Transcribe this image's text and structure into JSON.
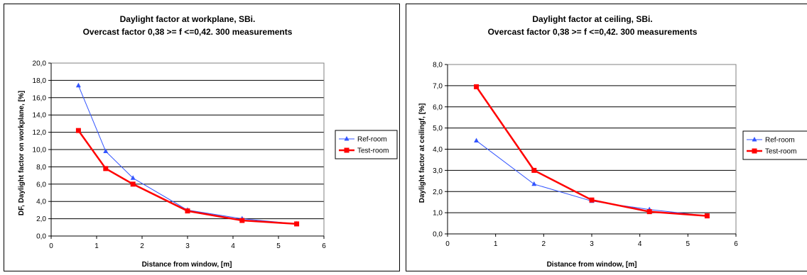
{
  "chart_data": [
    {
      "type": "line",
      "title": "Daylight factor at workplane, SBi.",
      "subtitle": "Overcast factor 0,38 >= f <=0,42. 300 measurements",
      "xlabel": "Distance from window, [m]",
      "ylabel": "DF, Daylight factor on workplane, [%]",
      "xlim": [
        0,
        6
      ],
      "ylim": [
        0,
        20
      ],
      "x_ticks": [
        "0",
        "1",
        "2",
        "3",
        "4",
        "5",
        "6"
      ],
      "y_ticks": [
        "0,0",
        "2,0",
        "4,0",
        "6,0",
        "8,0",
        "10,0",
        "12,0",
        "14,0",
        "16,0",
        "18,0",
        "20,0"
      ],
      "grid": "horizontal",
      "legend_position": "right",
      "series": [
        {
          "name": "Ref-room",
          "color": "#3355ff",
          "marker": "triangle",
          "x": [
            0.6,
            1.2,
            1.8,
            3.0,
            4.2,
            5.4
          ],
          "y": [
            17.4,
            9.8,
            6.7,
            3.0,
            2.0,
            1.4
          ]
        },
        {
          "name": "Test-room",
          "color": "#ff0000",
          "marker": "square",
          "x": [
            0.6,
            1.2,
            1.8,
            3.0,
            4.2,
            5.4
          ],
          "y": [
            12.2,
            7.8,
            6.0,
            2.9,
            1.8,
            1.4
          ]
        }
      ]
    },
    {
      "type": "line",
      "title": "Daylight factor at ceiling, SBi.",
      "subtitle": "Overcast factor 0,38 >= f <=0,42. 300 measurements",
      "xlabel": "Distance from window, [m]",
      "ylabel": "Daylight factor at ceilingf, [%]",
      "xlim": [
        0,
        6
      ],
      "ylim": [
        0,
        8
      ],
      "x_ticks": [
        "0",
        "1",
        "2",
        "3",
        "4",
        "5",
        "6"
      ],
      "y_ticks": [
        "0,0",
        "1,0",
        "2,0",
        "3,0",
        "4,0",
        "5,0",
        "6,0",
        "7,0",
        "8,0"
      ],
      "grid": "horizontal",
      "legend_position": "right",
      "series": [
        {
          "name": "Ref-room",
          "color": "#3355ff",
          "marker": "triangle",
          "x": [
            0.6,
            1.8,
            3.0,
            4.2,
            5.4
          ],
          "y": [
            4.4,
            2.35,
            1.55,
            1.15,
            0.85
          ]
        },
        {
          "name": "Test-room",
          "color": "#ff0000",
          "marker": "square",
          "x": [
            0.6,
            1.8,
            3.0,
            4.2,
            5.4
          ],
          "y": [
            6.95,
            3.0,
            1.6,
            1.05,
            0.85
          ]
        }
      ]
    }
  ]
}
